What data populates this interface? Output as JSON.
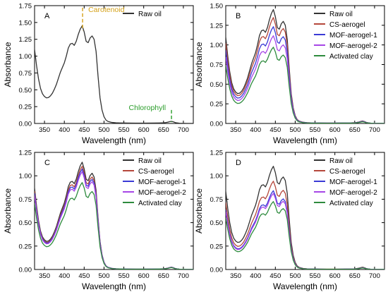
{
  "figure": {
    "charts": [
      {
        "panel": "A"
      },
      {
        "panel": "B"
      },
      {
        "panel": "C"
      },
      {
        "panel": "D"
      }
    ]
  },
  "chart_data": [
    {
      "panel_label": "A",
      "type": "line",
      "xlabel": "Wavelength (nm)",
      "ylabel": "Absorbance",
      "xlim": [
        325,
        725
      ],
      "ylim": [
        0,
        1.75
      ],
      "xticks": [
        350,
        400,
        450,
        500,
        550,
        600,
        650,
        700
      ],
      "yticks": [
        0.0,
        0.25,
        0.5,
        0.75,
        1.0,
        1.25,
        1.5,
        1.75
      ],
      "legend_position": "top-right",
      "grid": false,
      "annotations": [
        {
          "text": "Carotenoid",
          "x": 446,
          "color": "#d4a017",
          "y_from": 1.38,
          "y_to": 1.72
        },
        {
          "text": "Chlorophyll",
          "x": 670,
          "color": "#2a9d2a",
          "y_from": 0.02,
          "y_to": 0.2
        }
      ],
      "series": [
        {
          "name": "Raw oil",
          "color": "#333333",
          "scale": 1.0
        }
      ],
      "profile": {
        "x": [
          325,
          330,
          335,
          340,
          345,
          350,
          355,
          360,
          365,
          370,
          375,
          380,
          385,
          390,
          395,
          400,
          405,
          410,
          415,
          420,
          425,
          430,
          435,
          440,
          445,
          450,
          455,
          460,
          465,
          470,
          475,
          480,
          485,
          490,
          495,
          500,
          505,
          510,
          520,
          530,
          540,
          550,
          560,
          580,
          600,
          620,
          640,
          650,
          655,
          660,
          665,
          670,
          675,
          680,
          690,
          700,
          710,
          720,
          725
        ],
        "y": [
          1.1,
          0.86,
          0.66,
          0.52,
          0.44,
          0.4,
          0.38,
          0.385,
          0.41,
          0.45,
          0.51,
          0.58,
          0.67,
          0.76,
          0.83,
          0.9,
          1.0,
          1.12,
          1.18,
          1.19,
          1.16,
          1.22,
          1.32,
          1.4,
          1.45,
          1.36,
          1.22,
          1.2,
          1.27,
          1.3,
          1.25,
          1.07,
          0.7,
          0.38,
          0.2,
          0.1,
          0.05,
          0.03,
          0.015,
          0.01,
          0.008,
          0.007,
          0.006,
          0.005,
          0.005,
          0.006,
          0.008,
          0.01,
          0.013,
          0.018,
          0.026,
          0.032,
          0.024,
          0.012,
          0.004,
          0.002,
          0.001,
          0.001,
          0.001
        ]
      }
    },
    {
      "panel_label": "B",
      "type": "line",
      "xlabel": "Wavelength (nm)",
      "ylabel": "Absorbance",
      "xlim": [
        325,
        725
      ],
      "ylim": [
        0,
        1.5
      ],
      "xticks": [
        350,
        400,
        450,
        500,
        550,
        600,
        650,
        700
      ],
      "yticks": [
        0.0,
        0.25,
        0.5,
        0.75,
        1.0,
        1.25,
        1.5
      ],
      "legend_position": "top-right",
      "grid": false,
      "series": [
        {
          "name": "Raw oil",
          "color": "#333333",
          "scale": 1.0
        },
        {
          "name": "CS-aerogel",
          "color": "#b5473b",
          "scale": 0.93
        },
        {
          "name": "MOF-aerogel-1",
          "color": "#3a3ad6",
          "scale": 0.85
        },
        {
          "name": "MOF-aerogel-2",
          "color": "#a646e6",
          "scale": 0.77
        },
        {
          "name": "Activated clay",
          "color": "#2e8b3e",
          "scale": 0.67
        }
      ],
      "profile": {
        "x": [
          325,
          330,
          335,
          340,
          345,
          350,
          355,
          360,
          365,
          370,
          375,
          380,
          385,
          390,
          395,
          400,
          405,
          410,
          415,
          420,
          425,
          430,
          435,
          440,
          445,
          450,
          455,
          460,
          465,
          470,
          475,
          480,
          485,
          490,
          495,
          500,
          505,
          510,
          520,
          530,
          540,
          550,
          560,
          580,
          600,
          620,
          640,
          650,
          655,
          660,
          665,
          670,
          675,
          680,
          690,
          700,
          710,
          720,
          725
        ],
        "y": [
          1.1,
          0.86,
          0.66,
          0.52,
          0.44,
          0.4,
          0.38,
          0.385,
          0.41,
          0.45,
          0.51,
          0.58,
          0.67,
          0.76,
          0.83,
          0.9,
          1.0,
          1.12,
          1.18,
          1.19,
          1.16,
          1.22,
          1.32,
          1.4,
          1.45,
          1.36,
          1.22,
          1.2,
          1.27,
          1.3,
          1.25,
          1.07,
          0.7,
          0.38,
          0.2,
          0.1,
          0.05,
          0.03,
          0.015,
          0.01,
          0.008,
          0.007,
          0.006,
          0.005,
          0.005,
          0.006,
          0.008,
          0.01,
          0.013,
          0.018,
          0.026,
          0.032,
          0.024,
          0.012,
          0.004,
          0.002,
          0.001,
          0.001,
          0.001
        ]
      }
    },
    {
      "panel_label": "C",
      "type": "line",
      "xlabel": "Wavelength (nm)",
      "ylabel": "Absorbance",
      "xlim": [
        325,
        725
      ],
      "ylim": [
        0,
        1.25
      ],
      "xticks": [
        350,
        400,
        450,
        500,
        550,
        600,
        650,
        700
      ],
      "yticks": [
        0.0,
        0.25,
        0.5,
        0.75,
        1.0,
        1.25
      ],
      "legend_position": "top-right",
      "grid": false,
      "series": [
        {
          "name": "Raw oil",
          "color": "#333333",
          "scale": 0.79
        },
        {
          "name": "CS-aerogel",
          "color": "#b5473b",
          "scale": 0.76
        },
        {
          "name": "MOF-aerogel-1",
          "color": "#3a3ad6",
          "scale": 0.74
        },
        {
          "name": "MOF-aerogel-2",
          "color": "#a646e6",
          "scale": 0.72
        },
        {
          "name": "Activated clay",
          "color": "#2e8b3e",
          "scale": 0.64
        }
      ],
      "profile": {
        "x": [
          325,
          330,
          335,
          340,
          345,
          350,
          355,
          360,
          365,
          370,
          375,
          380,
          385,
          390,
          395,
          400,
          405,
          410,
          415,
          420,
          425,
          430,
          435,
          440,
          445,
          450,
          455,
          460,
          465,
          470,
          475,
          480,
          485,
          490,
          495,
          500,
          505,
          510,
          520,
          530,
          540,
          550,
          560,
          580,
          600,
          620,
          640,
          650,
          655,
          660,
          665,
          670,
          675,
          680,
          690,
          700,
          710,
          720,
          725
        ],
        "y": [
          1.1,
          0.86,
          0.66,
          0.52,
          0.44,
          0.4,
          0.38,
          0.385,
          0.41,
          0.45,
          0.51,
          0.58,
          0.67,
          0.76,
          0.83,
          0.9,
          1.0,
          1.12,
          1.18,
          1.19,
          1.16,
          1.22,
          1.32,
          1.4,
          1.45,
          1.36,
          1.22,
          1.2,
          1.27,
          1.3,
          1.25,
          1.07,
          0.7,
          0.38,
          0.2,
          0.1,
          0.05,
          0.03,
          0.015,
          0.01,
          0.008,
          0.007,
          0.006,
          0.005,
          0.005,
          0.006,
          0.008,
          0.01,
          0.013,
          0.018,
          0.026,
          0.032,
          0.024,
          0.012,
          0.004,
          0.002,
          0.001,
          0.001,
          0.001
        ]
      }
    },
    {
      "panel_label": "D",
      "type": "line",
      "xlabel": "Wavelength (nm)",
      "ylabel": "Absorbance",
      "xlim": [
        325,
        725
      ],
      "ylim": [
        0,
        1.25
      ],
      "xticks": [
        350,
        400,
        450,
        500,
        550,
        600,
        650,
        700
      ],
      "yticks": [
        0.0,
        0.25,
        0.5,
        0.75,
        1.0,
        1.25
      ],
      "legend_position": "top-right",
      "grid": false,
      "series": [
        {
          "name": "Raw oil",
          "color": "#333333",
          "scale": 0.76
        },
        {
          "name": "CS-aerogel",
          "color": "#b5473b",
          "scale": 0.65
        },
        {
          "name": "MOF-aerogel-1",
          "color": "#3a3ad6",
          "scale": 0.58
        },
        {
          "name": "MOF-aerogel-2",
          "color": "#a646e6",
          "scale": 0.56
        },
        {
          "name": "Activated clay",
          "color": "#2e8b3e",
          "scale": 0.5
        }
      ],
      "profile": {
        "x": [
          325,
          330,
          335,
          340,
          345,
          350,
          355,
          360,
          365,
          370,
          375,
          380,
          385,
          390,
          395,
          400,
          405,
          410,
          415,
          420,
          425,
          430,
          435,
          440,
          445,
          450,
          455,
          460,
          465,
          470,
          475,
          480,
          485,
          490,
          495,
          500,
          505,
          510,
          520,
          530,
          540,
          550,
          560,
          580,
          600,
          620,
          640,
          650,
          655,
          660,
          665,
          670,
          675,
          680,
          690,
          700,
          710,
          720,
          725
        ],
        "y": [
          1.1,
          0.86,
          0.66,
          0.52,
          0.44,
          0.4,
          0.38,
          0.385,
          0.41,
          0.45,
          0.51,
          0.58,
          0.67,
          0.76,
          0.83,
          0.9,
          1.0,
          1.12,
          1.18,
          1.19,
          1.16,
          1.22,
          1.32,
          1.4,
          1.45,
          1.36,
          1.22,
          1.2,
          1.27,
          1.3,
          1.25,
          1.07,
          0.7,
          0.38,
          0.2,
          0.1,
          0.05,
          0.03,
          0.015,
          0.01,
          0.008,
          0.007,
          0.006,
          0.005,
          0.005,
          0.006,
          0.008,
          0.01,
          0.013,
          0.018,
          0.026,
          0.032,
          0.024,
          0.012,
          0.004,
          0.002,
          0.001,
          0.001,
          0.001
        ]
      }
    }
  ]
}
